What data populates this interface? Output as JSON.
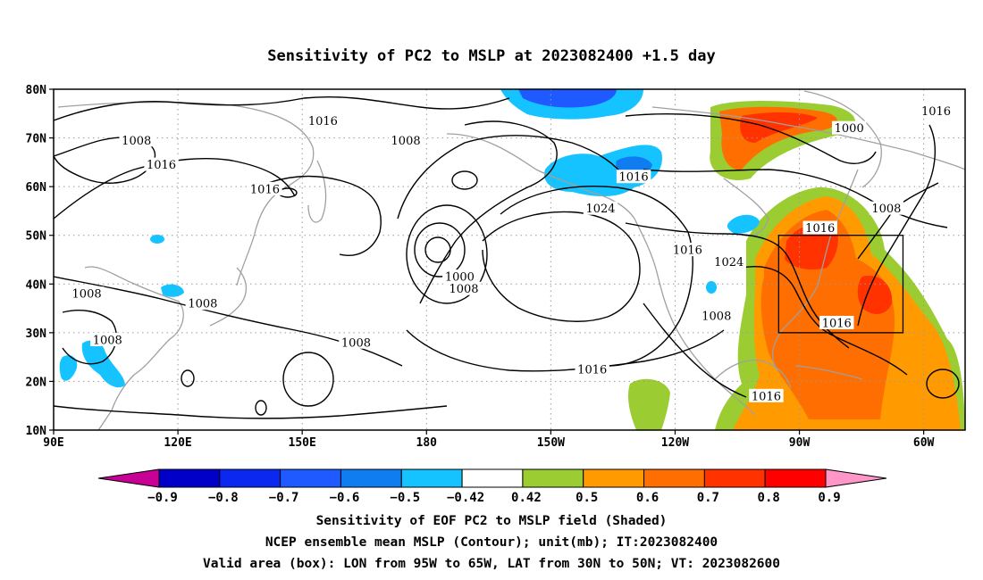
{
  "title": "Sensitivity of PC2 to MSLP at 2023082400 +1.5 day",
  "axes": {
    "lon_ticks": [
      "90E",
      "120E",
      "150E",
      "180",
      "150W",
      "120W",
      "90W",
      "60W"
    ],
    "lat_ticks": [
      "80N",
      "70N",
      "60N",
      "50N",
      "40N",
      "30N",
      "20N",
      "10N"
    ],
    "lon_range": [
      90,
      310
    ],
    "lat_range": [
      10,
      80
    ],
    "grid": "dotted"
  },
  "colorbar": {
    "labels": [
      "-0.9",
      "-0.8",
      "-0.7",
      "-0.6",
      "-0.5",
      "-0.42",
      "0.42",
      "0.5",
      "0.6",
      "0.7",
      "0.8",
      "0.9"
    ],
    "colors": [
      "#c80096",
      "#0000c8",
      "#0a28f0",
      "#1e5aff",
      "#0f7df0",
      "#14c3ff",
      "#ffffff",
      "#9bcd32",
      "#ff9b00",
      "#ff6e00",
      "#ff3200",
      "#ff0000",
      "#ff96c8"
    ]
  },
  "contour_labels": [
    {
      "text": "1016",
      "lon": 155,
      "lat": 73.5
    },
    {
      "text": "1016",
      "lon": 303,
      "lat": 75.5
    },
    {
      "text": "1008",
      "lon": 110,
      "lat": 69.5
    },
    {
      "text": "1008",
      "lon": 175,
      "lat": 69.5
    },
    {
      "text": "1000",
      "lon": 282,
      "lat": 72
    },
    {
      "text": "1016",
      "lon": 116,
      "lat": 64.5
    },
    {
      "text": "1016",
      "lon": 141,
      "lat": 59.5
    },
    {
      "text": "1016",
      "lon": 230,
      "lat": 62
    },
    {
      "text": "1024",
      "lon": 222,
      "lat": 55.5
    },
    {
      "text": "1008",
      "lon": 291,
      "lat": 55.5
    },
    {
      "text": "1016",
      "lon": 275,
      "lat": 51.5
    },
    {
      "text": "1016",
      "lon": 243,
      "lat": 47
    },
    {
      "text": "1024",
      "lon": 253,
      "lat": 44.5
    },
    {
      "text": "1000",
      "lon": 188,
      "lat": 41.5
    },
    {
      "text": "1008",
      "lon": 189,
      "lat": 39
    },
    {
      "text": "1008",
      "lon": 98,
      "lat": 38
    },
    {
      "text": "1008",
      "lon": 126,
      "lat": 36
    },
    {
      "text": "1008",
      "lon": 250,
      "lat": 33.5
    },
    {
      "text": "1016",
      "lon": 279,
      "lat": 32
    },
    {
      "text": "1008",
      "lon": 103,
      "lat": 28.5
    },
    {
      "text": "1008",
      "lon": 163,
      "lat": 28
    },
    {
      "text": "1016",
      "lon": 220,
      "lat": 22.5
    },
    {
      "text": "1016",
      "lon": 262,
      "lat": 17
    }
  ],
  "valid_box": {
    "lon": [
      265,
      295
    ],
    "lat": [
      30,
      50
    ]
  },
  "footer": [
    "Sensitivity of EOF PC2 to MSLP field (Shaded)",
    "NCEP ensemble mean MSLP (Contour); unit(mb); IT:2023082400",
    "Valid area (box): LON from 95W to 65W, LAT from 30N to 50N; VT: 2023082600"
  ]
}
